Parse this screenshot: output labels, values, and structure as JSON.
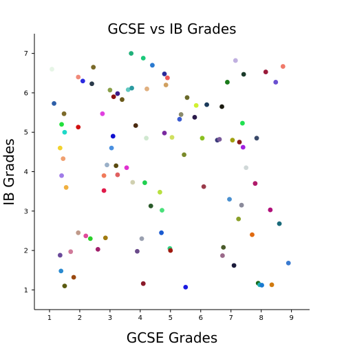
{
  "chart_data": {
    "type": "scatter",
    "title": "GCSE vs IB Grades",
    "xlabel": "GCSE Grades",
    "ylabel": "IB Grades",
    "xlim": [
      0.5,
      9.6
    ],
    "ylim": [
      0.5,
      7.5
    ],
    "xticks": [
      "1",
      "2",
      "3",
      "4",
      "5",
      "6",
      "7",
      "8",
      "9"
    ],
    "yticks": [
      "1",
      "2",
      "3",
      "4",
      "5",
      "6",
      "7"
    ],
    "grid": false,
    "points": [
      {
        "x": 1.08,
        "y": 6.6,
        "color": "#e6f5e6"
      },
      {
        "x": 1.15,
        "y": 5.73,
        "color": "#2e5fa8"
      },
      {
        "x": 1.35,
        "y": 4.6,
        "color": "#f2d22e"
      },
      {
        "x": 1.4,
        "y": 3.9,
        "color": "#a07ce8"
      },
      {
        "x": 1.45,
        "y": 4.33,
        "color": "#f0a070"
      },
      {
        "x": 1.4,
        "y": 5.2,
        "color": "#22e03c"
      },
      {
        "x": 1.48,
        "y": 5.47,
        "color": "#7c6a2a"
      },
      {
        "x": 1.5,
        "y": 5.0,
        "color": "#1ed9c8"
      },
      {
        "x": 1.55,
        "y": 3.6,
        "color": "#f0b040"
      },
      {
        "x": 1.35,
        "y": 1.88,
        "color": "#6a4a9a"
      },
      {
        "x": 1.38,
        "y": 1.48,
        "color": "#2a8ad0"
      },
      {
        "x": 1.5,
        "y": 1.1,
        "color": "#5a5a10"
      },
      {
        "x": 1.7,
        "y": 1.97,
        "color": "#d07a9a"
      },
      {
        "x": 1.8,
        "y": 1.32,
        "color": "#9a4a10"
      },
      {
        "x": 1.95,
        "y": 5.13,
        "color": "#d01010"
      },
      {
        "x": 1.95,
        "y": 6.4,
        "color": "#f08a7a"
      },
      {
        "x": 1.95,
        "y": 2.45,
        "color": "#c09a8a"
      },
      {
        "x": 2.1,
        "y": 6.3,
        "color": "#2a2ae0"
      },
      {
        "x": 2.2,
        "y": 2.37,
        "color": "#e04a9a"
      },
      {
        "x": 2.35,
        "y": 2.3,
        "color": "#2ad02a"
      },
      {
        "x": 2.4,
        "y": 6.23,
        "color": "#2a3a4a"
      },
      {
        "x": 2.45,
        "y": 6.65,
        "color": "#7a6a2a"
      },
      {
        "x": 2.6,
        "y": 2.03,
        "color": "#a0206a"
      },
      {
        "x": 2.75,
        "y": 5.47,
        "color": "#e040e0"
      },
      {
        "x": 2.8,
        "y": 3.9,
        "color": "#f07a5a"
      },
      {
        "x": 2.8,
        "y": 3.52,
        "color": "#e01a4a"
      },
      {
        "x": 2.85,
        "y": 2.32,
        "color": "#a07a10"
      },
      {
        "x": 2.9,
        "y": 4.17,
        "color": "#9ab0c8"
      },
      {
        "x": 3.0,
        "y": 6.07,
        "color": "#8aa04a"
      },
      {
        "x": 3.05,
        "y": 4.6,
        "color": "#4a90e0"
      },
      {
        "x": 3.1,
        "y": 4.9,
        "color": "#1010d0"
      },
      {
        "x": 3.12,
        "y": 5.9,
        "color": "#8a1010"
      },
      {
        "x": 3.2,
        "y": 4.15,
        "color": "#5a4a10"
      },
      {
        "x": 3.25,
        "y": 3.92,
        "color": "#e06060"
      },
      {
        "x": 3.25,
        "y": 5.98,
        "color": "#3a1a8a"
      },
      {
        "x": 3.4,
        "y": 5.83,
        "color": "#6a5a1a"
      },
      {
        "x": 3.55,
        "y": 4.1,
        "color": "#e030d0"
      },
      {
        "x": 3.6,
        "y": 6.08,
        "color": "#60c8c0"
      },
      {
        "x": 3.7,
        "y": 7.0,
        "color": "#20b07a"
      },
      {
        "x": 3.72,
        "y": 6.12,
        "color": "#2a9aa0"
      },
      {
        "x": 3.75,
        "y": 3.73,
        "color": "#d0d0b0"
      },
      {
        "x": 3.85,
        "y": 5.17,
        "color": "#4a2a10"
      },
      {
        "x": 3.9,
        "y": 1.98,
        "color": "#6a4a8a"
      },
      {
        "x": 4.05,
        "y": 2.3,
        "color": "#9aa0b0"
      },
      {
        "x": 4.1,
        "y": 6.88,
        "color": "#1ac87a"
      },
      {
        "x": 4.1,
        "y": 1.16,
        "color": "#8a1a2a"
      },
      {
        "x": 4.15,
        "y": 3.72,
        "color": "#20d050"
      },
      {
        "x": 4.2,
        "y": 4.85,
        "color": "#d0e8d0"
      },
      {
        "x": 4.22,
        "y": 6.1,
        "color": "#e0b080"
      },
      {
        "x": 4.35,
        "y": 3.13,
        "color": "#2a5a2a"
      },
      {
        "x": 4.4,
        "y": 6.7,
        "color": "#2a7ad0"
      },
      {
        "x": 4.65,
        "y": 3.48,
        "color": "#b8e040"
      },
      {
        "x": 4.7,
        "y": 2.45,
        "color": "#1a5ad0"
      },
      {
        "x": 4.72,
        "y": 3.02,
        "color": "#4ae07a"
      },
      {
        "x": 4.8,
        "y": 4.98,
        "color": "#7a2aa0"
      },
      {
        "x": 4.8,
        "y": 6.48,
        "color": "#2a2a9a"
      },
      {
        "x": 4.85,
        "y": 6.2,
        "color": "#d0a060"
      },
      {
        "x": 4.9,
        "y": 6.38,
        "color": "#f05a5a"
      },
      {
        "x": 4.98,
        "y": 2.05,
        "color": "#30d080"
      },
      {
        "x": 5.0,
        "y": 2.0,
        "color": "#a01a10"
      },
      {
        "x": 5.05,
        "y": 4.87,
        "color": "#d0e060"
      },
      {
        "x": 5.3,
        "y": 5.33,
        "color": "#3a5ad0"
      },
      {
        "x": 5.35,
        "y": 5.45,
        "color": "#8a8a6a"
      },
      {
        "x": 5.45,
        "y": 4.43,
        "color": "#7a8a2a"
      },
      {
        "x": 5.5,
        "y": 1.07,
        "color": "#1a1ae0"
      },
      {
        "x": 5.55,
        "y": 5.88,
        "color": "#6a6a2a"
      },
      {
        "x": 5.8,
        "y": 5.38,
        "color": "#2a1a4a"
      },
      {
        "x": 5.85,
        "y": 5.68,
        "color": "#d0f030"
      },
      {
        "x": 6.05,
        "y": 4.85,
        "color": "#8ac020"
      },
      {
        "x": 6.1,
        "y": 3.62,
        "color": "#9a3a4a"
      },
      {
        "x": 6.2,
        "y": 5.7,
        "color": "#1a3a5a"
      },
      {
        "x": 6.55,
        "y": 4.8,
        "color": "#3a3a7a"
      },
      {
        "x": 6.62,
        "y": 4.82,
        "color": "#7a5a9a"
      },
      {
        "x": 6.7,
        "y": 5.65,
        "color": "#1a1a10"
      },
      {
        "x": 6.72,
        "y": 1.87,
        "color": "#9a6a8a"
      },
      {
        "x": 6.75,
        "y": 2.08,
        "color": "#4a5a2a"
      },
      {
        "x": 6.88,
        "y": 6.27,
        "color": "#1a7a1a"
      },
      {
        "x": 6.95,
        "y": 3.3,
        "color": "#4a90d0"
      },
      {
        "x": 7.05,
        "y": 4.8,
        "color": "#a0a010"
      },
      {
        "x": 7.1,
        "y": 1.62,
        "color": "#1a1a3a"
      },
      {
        "x": 7.15,
        "y": 6.82,
        "color": "#c0b0e0"
      },
      {
        "x": 7.25,
        "y": 2.8,
        "color": "#8aa02a"
      },
      {
        "x": 7.28,
        "y": 4.75,
        "color": "#8a1a1a"
      },
      {
        "x": 7.35,
        "y": 3.15,
        "color": "#8a8a9a"
      },
      {
        "x": 7.38,
        "y": 5.23,
        "color": "#20e050"
      },
      {
        "x": 7.4,
        "y": 4.62,
        "color": "#a020e0"
      },
      {
        "x": 7.42,
        "y": 6.47,
        "color": "#1a3a2a"
      },
      {
        "x": 7.5,
        "y": 4.1,
        "color": "#d0d8d8"
      },
      {
        "x": 7.7,
        "y": 2.4,
        "color": "#e06a10"
      },
      {
        "x": 7.8,
        "y": 3.7,
        "color": "#b01a6a"
      },
      {
        "x": 7.85,
        "y": 4.85,
        "color": "#3a4a6a"
      },
      {
        "x": 7.9,
        "y": 1.17,
        "color": "#1a6a1a"
      },
      {
        "x": 7.95,
        "y": 1.13,
        "color": "#20b0b0"
      },
      {
        "x": 8.02,
        "y": 1.12,
        "color": "#1a7ad0"
      },
      {
        "x": 8.15,
        "y": 6.53,
        "color": "#9a1a3a"
      },
      {
        "x": 8.3,
        "y": 3.03,
        "color": "#b0107a"
      },
      {
        "x": 8.35,
        "y": 1.13,
        "color": "#d07a10"
      },
      {
        "x": 8.48,
        "y": 6.27,
        "color": "#6a50d0"
      },
      {
        "x": 8.6,
        "y": 2.68,
        "color": "#1a6a7a"
      },
      {
        "x": 8.72,
        "y": 6.67,
        "color": "#f07a6a"
      },
      {
        "x": 8.9,
        "y": 1.68,
        "color": "#3a7ad0"
      }
    ]
  }
}
